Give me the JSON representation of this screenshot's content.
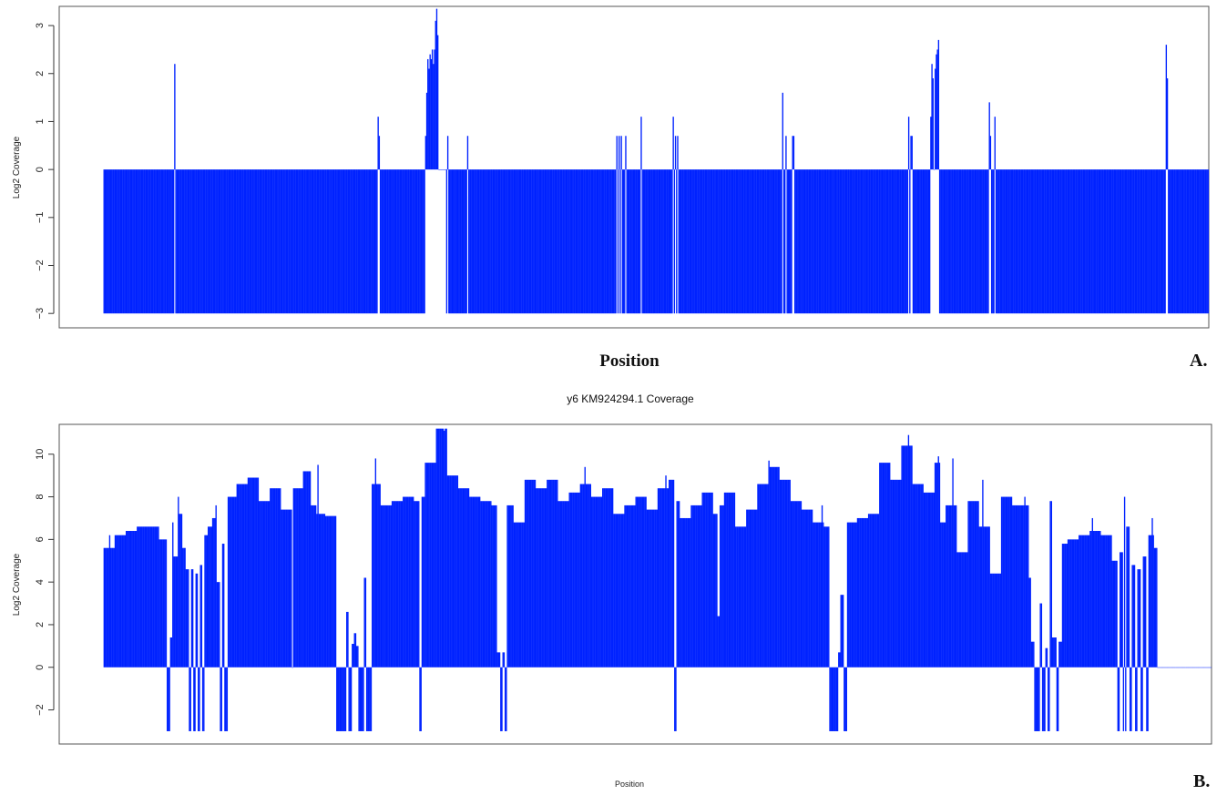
{
  "chart_data": [
    {
      "type": "bar",
      "panel": "A.",
      "title": "",
      "xlabel": "Position",
      "ylabel": "Log2 Coverage",
      "ylim": [
        -3.3,
        3.4
      ],
      "yticks": [
        -3,
        -2,
        -1,
        0,
        1,
        2,
        3
      ],
      "xlim": [
        -40,
        1000
      ],
      "baseline": 0,
      "floor": -3,
      "color": "#0022ff",
      "n_positions": 1000,
      "base_value": -3,
      "segments": [
        [
          295,
          297,
          0
        ],
        [
          298,
          300,
          0
        ],
        [
          301,
          303,
          0
        ],
        [
          304,
          306,
          0
        ],
        [
          307,
          309,
          0
        ],
        [
          751,
          753,
          0
        ]
      ],
      "spikes": [
        [
          64,
          2.2
        ],
        [
          248,
          1.1
        ],
        [
          249,
          0.7
        ],
        [
          291,
          0.7
        ],
        [
          292,
          1.6
        ],
        [
          293,
          2.3
        ],
        [
          294,
          2.1
        ],
        [
          295,
          2.4
        ],
        [
          296,
          2.3
        ],
        [
          297,
          2.5
        ],
        [
          298,
          2.2
        ],
        [
          299,
          2.5
        ],
        [
          300,
          3.1
        ],
        [
          301,
          3.35
        ],
        [
          302,
          2.8
        ],
        [
          311,
          0.7
        ],
        [
          329,
          0.7
        ],
        [
          464,
          0.7
        ],
        [
          466,
          0.7
        ],
        [
          468,
          0.7
        ],
        [
          472,
          0.7
        ],
        [
          486,
          1.1
        ],
        [
          515,
          1.1
        ],
        [
          517,
          0.7
        ],
        [
          519,
          0.7
        ],
        [
          614,
          1.6
        ],
        [
          617,
          0.7
        ],
        [
          623,
          0.7
        ],
        [
          624,
          0.7
        ],
        [
          728,
          1.1
        ],
        [
          730,
          0.7
        ],
        [
          731,
          0.7
        ],
        [
          748,
          1.1
        ],
        [
          749,
          2.2
        ],
        [
          750,
          1.9
        ],
        [
          752,
          2.1
        ],
        [
          753,
          2.4
        ],
        [
          754,
          2.5
        ],
        [
          755,
          2.7
        ],
        [
          801,
          1.4
        ],
        [
          802,
          0.7
        ],
        [
          806,
          1.1
        ],
        [
          961,
          2.6
        ],
        [
          962,
          1.9
        ]
      ]
    },
    {
      "type": "bar",
      "panel": "B.",
      "title": "y6 KM924294.1 Coverage",
      "xlabel": "Position",
      "ylabel": "Log2 Coverage",
      "ylim": [
        -3.6,
        11.4
      ],
      "yticks": [
        -2,
        0,
        2,
        4,
        6,
        8,
        10
      ],
      "xlim": [
        -40,
        1000
      ],
      "baseline": 0,
      "floor": -3,
      "color": "#0022ff",
      "n_positions": 1000,
      "segments": [
        [
          0,
          9,
          5.6
        ],
        [
          10,
          19,
          6.2
        ],
        [
          20,
          29,
          6.4
        ],
        [
          30,
          39,
          6.6
        ],
        [
          40,
          49,
          6.6
        ],
        [
          50,
          56,
          6.0
        ],
        [
          57,
          59,
          -3
        ],
        [
          60,
          62,
          1.4
        ],
        [
          63,
          66,
          5.2
        ],
        [
          67,
          70,
          7.2
        ],
        [
          71,
          73,
          5.6
        ],
        [
          74,
          76,
          4.6
        ],
        [
          77,
          78,
          -3
        ],
        [
          79,
          80,
          4.6
        ],
        [
          81,
          82,
          -3
        ],
        [
          83,
          84,
          4.4
        ],
        [
          85,
          86,
          -3
        ],
        [
          87,
          88,
          4.8
        ],
        [
          89,
          90,
          -3
        ],
        [
          91,
          93,
          6.2
        ],
        [
          94,
          97,
          6.6
        ],
        [
          98,
          101,
          7.0
        ],
        [
          102,
          104,
          4.0
        ],
        [
          105,
          106,
          -3
        ],
        [
          107,
          108,
          5.8
        ],
        [
          109,
          111,
          -3
        ],
        [
          112,
          119,
          8.0
        ],
        [
          120,
          129,
          8.6
        ],
        [
          130,
          139,
          8.9
        ],
        [
          140,
          149,
          7.8
        ],
        [
          150,
          159,
          8.4
        ],
        [
          160,
          169,
          7.4
        ],
        [
          171,
          179,
          8.4
        ],
        [
          180,
          186,
          9.2
        ],
        [
          187,
          191,
          7.6
        ],
        [
          192,
          199,
          7.2
        ],
        [
          200,
          209,
          7.1
        ],
        [
          210,
          218,
          -3
        ],
        [
          219,
          220,
          2.6
        ],
        [
          221,
          223,
          -3
        ],
        [
          224,
          225,
          1.1
        ],
        [
          226,
          227,
          1.6
        ],
        [
          228,
          229,
          1.0
        ],
        [
          230,
          234,
          -3
        ],
        [
          235,
          236,
          4.2
        ],
        [
          237,
          241,
          -3
        ],
        [
          242,
          249,
          8.6
        ],
        [
          250,
          259,
          7.6
        ],
        [
          260,
          269,
          7.8
        ],
        [
          270,
          279,
          8.0
        ],
        [
          280,
          284,
          7.8
        ],
        [
          285,
          286,
          -3
        ],
        [
          287,
          289,
          8.0
        ],
        [
          290,
          299,
          9.6
        ],
        [
          300,
          309,
          11.2
        ],
        [
          310,
          319,
          9.0
        ],
        [
          320,
          329,
          8.4
        ],
        [
          330,
          339,
          8.0
        ],
        [
          340,
          349,
          7.8
        ],
        [
          350,
          354,
          7.6
        ],
        [
          355,
          357,
          0.7
        ],
        [
          358,
          359,
          -3
        ],
        [
          360,
          361,
          0.7
        ],
        [
          362,
          363,
          -3
        ],
        [
          364,
          369,
          7.6
        ],
        [
          370,
          379,
          6.8
        ],
        [
          380,
          389,
          8.8
        ],
        [
          390,
          399,
          8.4
        ],
        [
          400,
          409,
          8.8
        ],
        [
          410,
          419,
          7.8
        ],
        [
          420,
          429,
          8.2
        ],
        [
          430,
          439,
          8.6
        ],
        [
          440,
          449,
          8.0
        ],
        [
          450,
          459,
          8.4
        ],
        [
          460,
          469,
          7.2
        ],
        [
          470,
          479,
          7.6
        ],
        [
          480,
          489,
          8.0
        ],
        [
          490,
          499,
          7.4
        ],
        [
          500,
          509,
          8.4
        ],
        [
          510,
          514,
          8.8
        ],
        [
          515,
          516,
          -3
        ],
        [
          517,
          519,
          7.8
        ],
        [
          520,
          529,
          7.0
        ],
        [
          530,
          539,
          7.6
        ],
        [
          540,
          549,
          8.2
        ],
        [
          550,
          553,
          7.2
        ],
        [
          554,
          555,
          2.4
        ],
        [
          556,
          559,
          7.6
        ],
        [
          560,
          569,
          8.2
        ],
        [
          570,
          579,
          6.6
        ],
        [
          580,
          589,
          7.4
        ],
        [
          590,
          599,
          8.6
        ],
        [
          600,
          609,
          9.4
        ],
        [
          610,
          619,
          8.8
        ],
        [
          620,
          629,
          7.8
        ],
        [
          630,
          639,
          7.4
        ],
        [
          640,
          649,
          6.8
        ],
        [
          650,
          654,
          6.6
        ],
        [
          655,
          662,
          -3
        ],
        [
          663,
          664,
          0.7
        ],
        [
          665,
          667,
          3.4
        ],
        [
          668,
          670,
          -3
        ],
        [
          671,
          679,
          6.8
        ],
        [
          680,
          689,
          7.0
        ],
        [
          690,
          699,
          7.2
        ],
        [
          700,
          709,
          9.6
        ],
        [
          710,
          719,
          8.8
        ],
        [
          720,
          729,
          10.4
        ],
        [
          730,
          739,
          8.6
        ],
        [
          740,
          749,
          8.2
        ],
        [
          750,
          754,
          9.6
        ],
        [
          755,
          759,
          6.8
        ],
        [
          760,
          769,
          7.6
        ],
        [
          770,
          779,
          5.4
        ],
        [
          780,
          789,
          7.8
        ],
        [
          790,
          799,
          6.6
        ],
        [
          800,
          809,
          4.4
        ],
        [
          810,
          819,
          8.0
        ],
        [
          820,
          829,
          7.6
        ],
        [
          830,
          834,
          7.6
        ],
        [
          835,
          836,
          4.2
        ],
        [
          837,
          839,
          1.2
        ],
        [
          840,
          844,
          -3
        ],
        [
          845,
          846,
          3.0
        ],
        [
          847,
          849,
          -3
        ],
        [
          850,
          851,
          0.9
        ],
        [
          852,
          853,
          -3
        ],
        [
          854,
          855,
          7.8
        ],
        [
          856,
          859,
          1.4
        ],
        [
          860,
          861,
          -3
        ],
        [
          862,
          864,
          1.2
        ],
        [
          865,
          869,
          5.8
        ],
        [
          870,
          879,
          6.0
        ],
        [
          880,
          889,
          6.2
        ],
        [
          890,
          899,
          6.4
        ],
        [
          900,
          909,
          6.2
        ],
        [
          910,
          914,
          5.0
        ],
        [
          915,
          916,
          -3
        ],
        [
          917,
          919,
          5.4
        ],
        [
          920,
          922,
          -3
        ],
        [
          923,
          925,
          6.6
        ],
        [
          926,
          927,
          -3
        ],
        [
          928,
          930,
          4.8
        ],
        [
          931,
          932,
          -3
        ],
        [
          933,
          935,
          4.6
        ],
        [
          936,
          937,
          -3
        ],
        [
          938,
          940,
          5.2
        ],
        [
          941,
          942,
          -3
        ],
        [
          943,
          947,
          6.2
        ],
        [
          948,
          950,
          5.6
        ]
      ],
      "spikes": [
        [
          5,
          6.2
        ],
        [
          62,
          6.8
        ],
        [
          67,
          8.0
        ],
        [
          101,
          7.6
        ],
        [
          193,
          9.5
        ],
        [
          245,
          9.8
        ],
        [
          307,
          11.1
        ],
        [
          434,
          9.4
        ],
        [
          507,
          9.0
        ],
        [
          600,
          9.7
        ],
        [
          648,
          7.6
        ],
        [
          726,
          10.9
        ],
        [
          753,
          9.9
        ],
        [
          766,
          9.8
        ],
        [
          793,
          8.8
        ],
        [
          831,
          8.0
        ],
        [
          892,
          7.0
        ],
        [
          921,
          8.0
        ],
        [
          946,
          7.0
        ]
      ]
    }
  ]
}
